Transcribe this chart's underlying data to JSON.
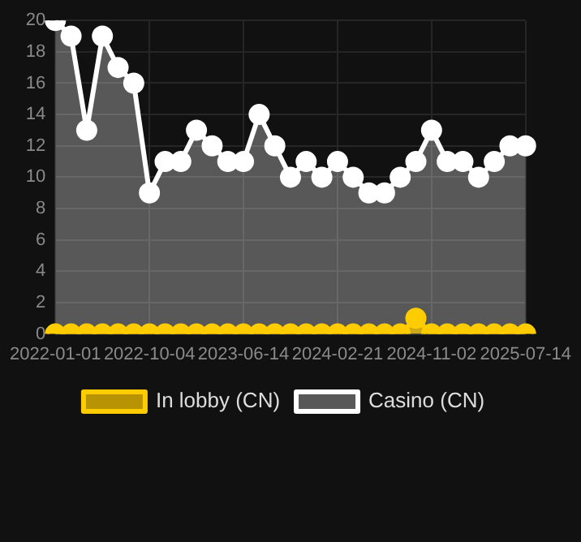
{
  "chart_data": {
    "type": "area",
    "categories": [
      "2022-01-01",
      null,
      null,
      null,
      null,
      null,
      "2022-10-04",
      null,
      null,
      null,
      null,
      null,
      "2023-06-14",
      null,
      null,
      null,
      null,
      null,
      "2024-02-21",
      null,
      null,
      null,
      null,
      null,
      "2024-11-02",
      null,
      null,
      null,
      null,
      null,
      "2025-07-14"
    ],
    "series": [
      {
        "name": "In lobby (CN)",
        "color": "#ffcc00",
        "values": [
          0,
          0,
          0,
          0,
          0,
          0,
          0,
          0,
          0,
          0,
          0,
          0,
          0,
          0,
          0,
          0,
          0,
          0,
          0,
          0,
          0,
          0,
          0,
          1,
          0,
          0,
          0,
          0,
          0,
          0,
          0
        ]
      },
      {
        "name": "Casino (CN)",
        "color": "#ffffff",
        "values": [
          20,
          19,
          13,
          19,
          17,
          16,
          9,
          11,
          11,
          13,
          12,
          11,
          11,
          14,
          12,
          10,
          11,
          10,
          11,
          10,
          9,
          9,
          10,
          11,
          13,
          11,
          11,
          10,
          11,
          12,
          12
        ]
      }
    ],
    "ylim": [
      0,
      20
    ],
    "yticks": [
      0,
      2,
      4,
      6,
      8,
      10,
      12,
      14,
      16,
      18,
      20
    ],
    "grid": true,
    "legend": "bottom",
    "marker": "circle",
    "line_style": "solid"
  }
}
